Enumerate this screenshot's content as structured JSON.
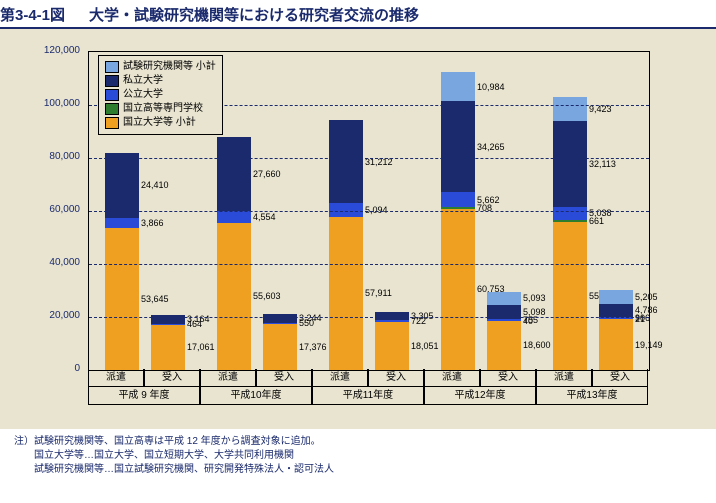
{
  "title_prefix": "第3-4-1図",
  "title_main": "大学・試験研究機関等における研究者交流の推移",
  "legend": [
    {
      "label": "試験研究機関等 小計",
      "color": "#7aa6e0"
    },
    {
      "label": "私立大学",
      "color": "#1a2a6c"
    },
    {
      "label": "公立大学",
      "color": "#2a4bd7"
    },
    {
      "label": "国立高等専門学校",
      "color": "#2e7d2e"
    },
    {
      "label": "国立大学等 小計",
      "color": "#f0a020"
    }
  ],
  "y": {
    "max": 120000,
    "step": 20000
  },
  "groups": [
    {
      "label": "平成 9 年度",
      "cols": [
        {
          "sub": "派遣",
          "stack": [
            {
              "v": 53645,
              "c": "#f0a020"
            },
            {
              "v": 3866,
              "c": "#2a4bd7"
            },
            {
              "v": 24410,
              "c": "#1a2a6c"
            }
          ]
        },
        {
          "sub": "受入",
          "stack": [
            {
              "v": 17061,
              "c": "#f0a020"
            },
            {
              "v": 464,
              "c": "#2a4bd7"
            },
            {
              "v": 3164,
              "c": "#1a2a6c"
            }
          ]
        }
      ]
    },
    {
      "label": "平成10年度",
      "cols": [
        {
          "sub": "派遣",
          "stack": [
            {
              "v": 55603,
              "c": "#f0a020"
            },
            {
              "v": 4554,
              "c": "#2a4bd7"
            },
            {
              "v": 27660,
              "c": "#1a2a6c"
            }
          ]
        },
        {
          "sub": "受入",
          "stack": [
            {
              "v": 17376,
              "c": "#f0a020"
            },
            {
              "v": 550,
              "c": "#2a4bd7"
            },
            {
              "v": 3244,
              "c": "#1a2a6c"
            }
          ]
        }
      ]
    },
    {
      "label": "平成11年度",
      "cols": [
        {
          "sub": "派遣",
          "stack": [
            {
              "v": 57911,
              "c": "#f0a020"
            },
            {
              "v": 5094,
              "c": "#2a4bd7"
            },
            {
              "v": 31212,
              "c": "#1a2a6c"
            }
          ]
        },
        {
          "sub": "受入",
          "stack": [
            {
              "v": 18051,
              "c": "#f0a020"
            },
            {
              "v": 722,
              "c": "#2a4bd7"
            },
            {
              "v": 3305,
              "c": "#1a2a6c"
            }
          ]
        }
      ]
    },
    {
      "label": "平成12年度",
      "cols": [
        {
          "sub": "派遣",
          "stack": [
            {
              "v": 60753,
              "c": "#f0a020"
            },
            {
              "v": 708,
              "c": "#2e7d2e"
            },
            {
              "v": 5662,
              "c": "#2a4bd7"
            },
            {
              "v": 34265,
              "c": "#1a2a6c"
            },
            {
              "v": 10984,
              "c": "#7aa6e0"
            }
          ]
        },
        {
          "sub": "受入",
          "stack": [
            {
              "v": 18600,
              "c": "#f0a020"
            },
            {
              "v": 40,
              "c": "#2e7d2e"
            },
            {
              "v": 755,
              "c": "#2a4bd7"
            },
            {
              "v": 5098,
              "c": "#1a2a6c"
            },
            {
              "v": 5093,
              "c": "#7aa6e0"
            }
          ]
        }
      ]
    },
    {
      "label": "平成13年度",
      "cols": [
        {
          "sub": "派遣",
          "stack": [
            {
              "v": 55969,
              "c": "#f0a020"
            },
            {
              "v": 661,
              "c": "#2e7d2e"
            },
            {
              "v": 5038,
              "c": "#2a4bd7"
            },
            {
              "v": 32113,
              "c": "#1a2a6c"
            },
            {
              "v": 9423,
              "c": "#7aa6e0"
            }
          ]
        },
        {
          "sub": "受入",
          "stack": [
            {
              "v": 19149,
              "c": "#f0a020"
            },
            {
              "v": 21,
              "c": "#2e7d2e"
            },
            {
              "v": 906,
              "c": "#2a4bd7"
            },
            {
              "v": 4786,
              "c": "#1a2a6c"
            },
            {
              "v": 5205,
              "c": "#7aa6e0"
            }
          ]
        }
      ]
    }
  ],
  "notes": [
    "注）試験研究機関等、国立高専は平成 12 年度から調査対象に追加。",
    "　　国立大学等…国立大学、国立短期大学、大学共同利用機関",
    "　　試験研究機関等…国立試験研究機関、研究開発特殊法人・認可法人"
  ]
}
